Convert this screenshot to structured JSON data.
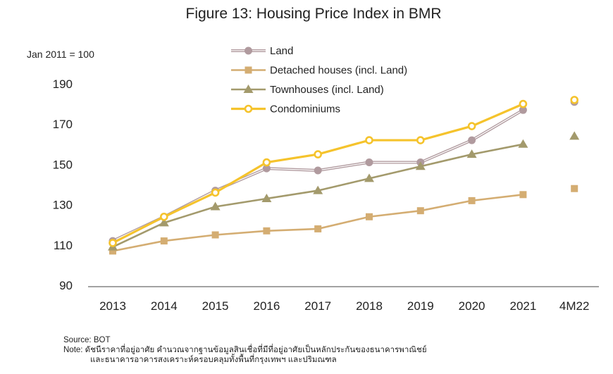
{
  "chart_data": {
    "type": "line",
    "title": "Figure 13: Housing Price Index in BMR",
    "unit_label": "Jan 2011 = 100",
    "categories": [
      "2013",
      "2014",
      "2015",
      "2016",
      "2017",
      "2018",
      "2019",
      "2020",
      "2021",
      "4M22"
    ],
    "ylim": [
      90,
      190
    ],
    "yticks": [
      90,
      110,
      130,
      150,
      170,
      190
    ],
    "grid": false,
    "legend_position": "top-center",
    "series": [
      {
        "name": "Land",
        "color": "#b09a9e",
        "marker": "circle",
        "values": [
          112,
          124,
          137,
          148,
          147,
          151,
          151,
          162,
          177,
          181
        ]
      },
      {
        "name": "Detached houses (incl. Land)",
        "color": "#d4ad72",
        "marker": "square",
        "values": [
          107,
          112,
          115,
          117,
          118,
          124,
          127,
          132,
          135,
          138
        ]
      },
      {
        "name": "Townhouses (incl. Land)",
        "color": "#a39a6c",
        "marker": "triangle",
        "values": [
          109,
          121,
          129,
          133,
          137,
          143,
          149,
          155,
          160,
          164
        ]
      },
      {
        "name": "Condominiums",
        "color": "#f5c32c",
        "marker": "ring",
        "values": [
          111,
          124,
          136,
          151,
          155,
          162,
          162,
          169,
          180,
          182
        ]
      }
    ]
  },
  "footer": {
    "source": "Source: BOT",
    "note_line1": "Note: ดัชนีราคาที่อยู่อาศัย คำนวณจากฐานข้อมูลสินเชื่อที่มีที่อยู่อาศัยเป็นหลักประกันของธนาคารพาณิชย์",
    "note_line2": "และธนาคารอาคารสงเคราะห์ครอบคลุมทั้งพื้นที่กรุงเทพฯ และปริมณฑล"
  }
}
